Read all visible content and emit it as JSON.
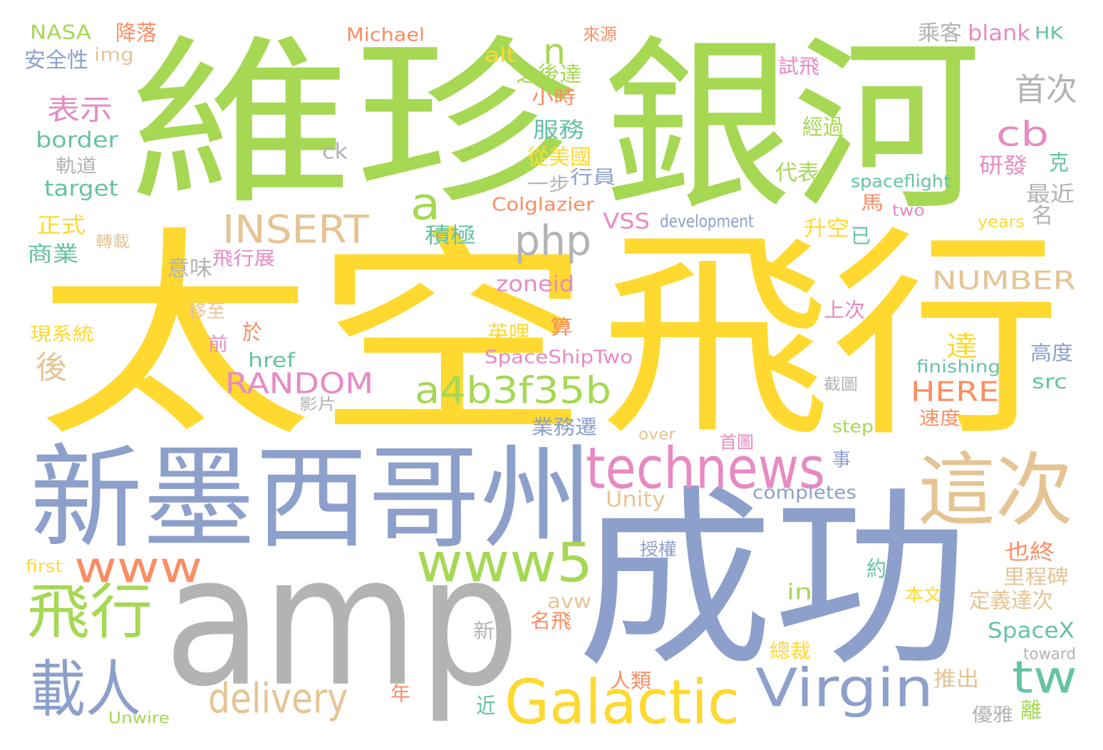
{
  "palette": {
    "yellow": "#ffd92f",
    "green": "#a6d854",
    "blue": "#8da0cb",
    "gray": "#b3b3b3",
    "tan": "#e5c494",
    "pink": "#e78ac3",
    "orange": "#fc8d62",
    "teal": "#66c2a5"
  },
  "words": [
    {
      "text": "太空",
      "color": "yellow"
    },
    {
      "text": "飛行",
      "color": "yellow"
    },
    {
      "text": "維珍",
      "color": "green"
    },
    {
      "text": "銀河",
      "color": "green"
    },
    {
      "text": "新墨西哥州",
      "color": "blue"
    },
    {
      "text": "成功",
      "color": "blue"
    },
    {
      "text": "amp",
      "color": "gray"
    },
    {
      "text": "這次",
      "color": "tan"
    },
    {
      "text": "technews",
      "color": "pink"
    },
    {
      "text": "Virgin",
      "color": "blue"
    },
    {
      "text": "Galactic",
      "color": "yellow"
    },
    {
      "text": "www5",
      "color": "green"
    },
    {
      "text": "www",
      "color": "orange"
    },
    {
      "text": "飛行",
      "color": "green"
    },
    {
      "text": "載人",
      "color": "blue"
    },
    {
      "text": "delivery",
      "color": "tan"
    },
    {
      "text": "a4b3f35b",
      "color": "green"
    },
    {
      "text": "php",
      "color": "gray"
    },
    {
      "text": "INSERT",
      "color": "tan"
    },
    {
      "text": "RANDOM",
      "color": "pink"
    },
    {
      "text": "NUMBER",
      "color": "tan"
    },
    {
      "text": "HERE",
      "color": "orange"
    },
    {
      "text": "tw",
      "color": "teal"
    },
    {
      "text": "a",
      "color": "green"
    },
    {
      "text": "n",
      "color": "green"
    },
    {
      "text": "cb",
      "color": "pink"
    },
    {
      "text": "首次",
      "color": "gray"
    },
    {
      "text": "表示",
      "color": "pink"
    },
    {
      "text": "後",
      "color": "tan"
    },
    {
      "text": "達",
      "color": "yellow"
    },
    {
      "text": "NASA",
      "color": "green"
    },
    {
      "text": "降落",
      "color": "orange"
    },
    {
      "text": "Michael",
      "color": "orange"
    },
    {
      "text": "來源",
      "color": "orange"
    },
    {
      "text": "乘客",
      "color": "gray"
    },
    {
      "text": "blank",
      "color": "pink"
    },
    {
      "text": "HK",
      "color": "teal"
    },
    {
      "text": "安全性",
      "color": "blue"
    },
    {
      "text": "img",
      "color": "tan"
    },
    {
      "text": "alt",
      "color": "yellow"
    },
    {
      "text": "之後達",
      "color": "green"
    },
    {
      "text": "試飛",
      "color": "pink"
    },
    {
      "text": "小時",
      "color": "orange"
    },
    {
      "text": "border",
      "color": "teal"
    },
    {
      "text": "服務",
      "color": "teal"
    },
    {
      "text": "經過",
      "color": "green"
    },
    {
      "text": "ck",
      "color": "gray"
    },
    {
      "text": "軌道",
      "color": "gray"
    },
    {
      "text": "從美國",
      "color": "yellow"
    },
    {
      "text": "代表",
      "color": "green"
    },
    {
      "text": "研發",
      "color": "pink"
    },
    {
      "text": "克",
      "color": "teal"
    },
    {
      "text": "target",
      "color": "teal"
    },
    {
      "text": "一步",
      "color": "gray"
    },
    {
      "text": "行員",
      "color": "blue"
    },
    {
      "text": "spaceflight",
      "color": "teal"
    },
    {
      "text": "最近",
      "color": "gray"
    },
    {
      "text": "馬",
      "color": "orange"
    },
    {
      "text": "Colglazier",
      "color": "orange"
    },
    {
      "text": "two",
      "color": "pink"
    },
    {
      "text": "名",
      "color": "gray"
    },
    {
      "text": "正式",
      "color": "yellow"
    },
    {
      "text": "轉載",
      "color": "tan"
    },
    {
      "text": "商業",
      "color": "teal"
    },
    {
      "text": "積極",
      "color": "teal"
    },
    {
      "text": "VSS",
      "color": "pink"
    },
    {
      "text": "development",
      "color": "blue"
    },
    {
      "text": "years",
      "color": "yellow"
    },
    {
      "text": "升空",
      "color": "yellow"
    },
    {
      "text": "已",
      "color": "teal"
    },
    {
      "text": "意味",
      "color": "gray"
    },
    {
      "text": "飛行展",
      "color": "pink"
    },
    {
      "text": "zoneid",
      "color": "pink"
    },
    {
      "text": "上次",
      "color": "pink"
    },
    {
      "text": "移至",
      "color": "tan"
    },
    {
      "text": "現系統",
      "color": "yellow"
    },
    {
      "text": "於",
      "color": "orange"
    },
    {
      "text": "英哩",
      "color": "yellow"
    },
    {
      "text": "算",
      "color": "orange"
    },
    {
      "text": "前",
      "color": "pink"
    },
    {
      "text": "href",
      "color": "teal"
    },
    {
      "text": "SpaceShipTwo",
      "color": "pink"
    },
    {
      "text": "高度",
      "color": "blue"
    },
    {
      "text": "finishing",
      "color": "teal"
    },
    {
      "text": "截圖",
      "color": "gray"
    },
    {
      "text": "src",
      "color": "teal"
    },
    {
      "text": "影片",
      "color": "gray"
    },
    {
      "text": "速度",
      "color": "orange"
    },
    {
      "text": "step",
      "color": "green"
    },
    {
      "text": "業務遷",
      "color": "blue"
    },
    {
      "text": "over",
      "color": "tan"
    },
    {
      "text": "首圖",
      "color": "pink"
    },
    {
      "text": "事",
      "color": "blue"
    },
    {
      "text": "Unity",
      "color": "tan"
    },
    {
      "text": "completes",
      "color": "blue"
    },
    {
      "text": "授權",
      "color": "blue"
    },
    {
      "text": "也終",
      "color": "orange"
    },
    {
      "text": "first",
      "color": "yellow"
    },
    {
      "text": "里程碑",
      "color": "tan"
    },
    {
      "text": "in",
      "color": "green"
    },
    {
      "text": "avw",
      "color": "tan"
    },
    {
      "text": "約",
      "color": "teal"
    },
    {
      "text": "本文",
      "color": "yellow"
    },
    {
      "text": "定義達次",
      "color": "tan"
    },
    {
      "text": "名飛",
      "color": "orange"
    },
    {
      "text": "新",
      "color": "gray"
    },
    {
      "text": "SpaceX",
      "color": "teal"
    },
    {
      "text": "總裁",
      "color": "yellow"
    },
    {
      "text": "toward",
      "color": "gray"
    },
    {
      "text": "人類",
      "color": "orange"
    },
    {
      "text": "推出",
      "color": "tan"
    },
    {
      "text": "年",
      "color": "orange"
    },
    {
      "text": "近",
      "color": "teal"
    },
    {
      "text": "Unwire",
      "color": "green"
    },
    {
      "text": "優雅",
      "color": "gray"
    },
    {
      "text": "離",
      "color": "green"
    }
  ]
}
